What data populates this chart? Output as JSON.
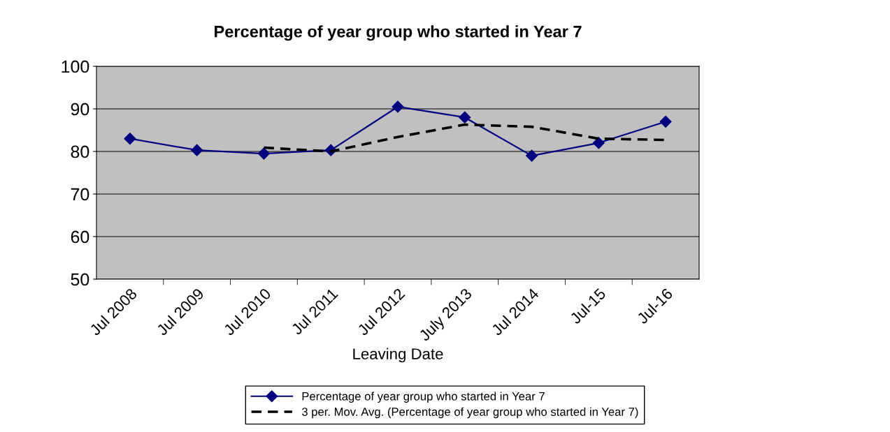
{
  "chart_data": {
    "type": "line",
    "title": "Percentage of year group who started in Year 7",
    "xlabel": "Leaving Date",
    "categories": [
      "Jul 2008",
      "Jul 2009",
      "Jul 2010",
      "Jul 2011",
      "Jul 2012",
      "July 2013",
      "Jul 2014",
      "Jul-15",
      "Jul-16"
    ],
    "series": [
      {
        "name": "Percentage of year group who started in Year 7",
        "color": "#000080",
        "marker": "diamond",
        "line_style": "solid",
        "values": [
          83,
          80.3,
          79.5,
          80.3,
          90.5,
          88,
          79,
          82,
          87
        ]
      },
      {
        "name": "3 per. Mov. Avg. (Percentage of year group who started in Year 7)",
        "color": "#000000",
        "marker": "none",
        "line_style": "dashed",
        "values": [
          null,
          null,
          80.9,
          80.0,
          83.4,
          86.3,
          85.8,
          83,
          82.7
        ]
      }
    ],
    "ylim": [
      50,
      100
    ],
    "yticks": [
      50,
      60,
      70,
      80,
      90,
      100
    ],
    "grid": "y",
    "legend": "bottom"
  }
}
